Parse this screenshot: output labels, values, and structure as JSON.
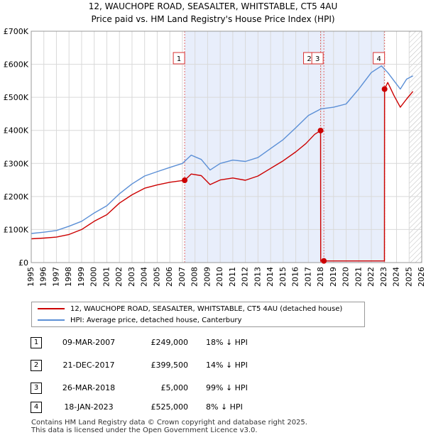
{
  "title_line1": "12, WAUCHOPE ROAD, SEASALTER, WHITSTABLE, CT5 4AU",
  "title_line2": "Price paid vs. HM Land Registry's House Price Index (HPI)",
  "colors": {
    "red": "#cc0000",
    "blue": "#5b8fd6",
    "shade": "#e8eefb",
    "grid": "#d9d9d9",
    "hatch": "#bbbbbb"
  },
  "chart_data": {
    "type": "line",
    "xlim": [
      1995,
      2026
    ],
    "ylim": [
      0,
      700000
    ],
    "yticks": [
      0,
      100000,
      200000,
      300000,
      400000,
      500000,
      600000,
      700000
    ],
    "ytick_labels": [
      "£0",
      "£100K",
      "£200K",
      "£300K",
      "£400K",
      "£500K",
      "£600K",
      "£700K"
    ],
    "xticks": [
      1995,
      1996,
      1997,
      1998,
      1999,
      2000,
      2001,
      2002,
      2003,
      2004,
      2005,
      2006,
      2007,
      2008,
      2009,
      2010,
      2011,
      2012,
      2013,
      2014,
      2015,
      2016,
      2017,
      2018,
      2019,
      2020,
      2021,
      2022,
      2023,
      2024,
      2025,
      2026
    ],
    "shaded_range": [
      2007.18,
      2023.05
    ],
    "hatched_from": 2025.0,
    "series": [
      {
        "name": "12, WAUCHOPE ROAD, SEASALTER, WHITSTABLE, CT5 4AU (detached house)",
        "color": "#cc0000",
        "x": [
          1995.0,
          1996.0,
          1997.0,
          1998.0,
          1999.0,
          2000.0,
          2001.0,
          2002.0,
          2003.0,
          2004.0,
          2005.0,
          2006.0,
          2007.18,
          2007.7,
          2008.5,
          2009.2,
          2010.0,
          2011.0,
          2012.0,
          2013.0,
          2014.0,
          2015.0,
          2016.0,
          2016.8,
          2017.5,
          2017.97,
          2017.98,
          2018.23,
          2018.3,
          2019.0,
          2020.0,
          2021.0,
          2022.0,
          2023.04,
          2023.05,
          2023.3,
          2023.8,
          2024.3,
          2024.8,
          2025.3
        ],
        "y": [
          72000,
          74000,
          77000,
          85000,
          100000,
          125000,
          145000,
          180000,
          205000,
          225000,
          235000,
          243000,
          249000,
          268000,
          263000,
          236000,
          250000,
          256000,
          249000,
          262000,
          285000,
          308000,
          335000,
          360000,
          388000,
          399500,
          5000,
          5000,
          5000,
          5000,
          5000,
          5000,
          5000,
          5000,
          525000,
          545000,
          505000,
          470000,
          495000,
          518000
        ]
      },
      {
        "name": "HPI: Average price, detached house, Canterbury",
        "color": "#5b8fd6",
        "x": [
          1995.0,
          1996.0,
          1997.0,
          1998.0,
          1999.0,
          2000.0,
          2001.0,
          2002.0,
          2003.0,
          2004.0,
          2005.0,
          2006.0,
          2007.0,
          2007.7,
          2008.5,
          2009.2,
          2010.0,
          2011.0,
          2012.0,
          2013.0,
          2014.0,
          2015.0,
          2016.0,
          2017.0,
          2018.0,
          2019.0,
          2020.0,
          2021.0,
          2022.0,
          2022.8,
          2023.3,
          2023.8,
          2024.3,
          2024.8,
          2025.3
        ],
        "y": [
          88000,
          92000,
          97000,
          110000,
          125000,
          150000,
          172000,
          208000,
          238000,
          262000,
          275000,
          288000,
          300000,
          325000,
          312000,
          280000,
          300000,
          310000,
          306000,
          318000,
          345000,
          372000,
          408000,
          445000,
          465000,
          470000,
          480000,
          525000,
          575000,
          595000,
          575000,
          550000,
          525000,
          555000,
          565000
        ]
      }
    ],
    "transactions": [
      {
        "id": "1",
        "x": 2007.18,
        "y": 249000
      },
      {
        "id": "2",
        "x": 2017.97,
        "y": 399500
      },
      {
        "id": "3",
        "x": 2018.23,
        "y": 5000
      },
      {
        "id": "4",
        "x": 2023.05,
        "y": 525000
      }
    ]
  },
  "legend": {
    "property": "12, WAUCHOPE ROAD, SEASALTER, WHITSTABLE, CT5 4AU (detached house)",
    "hpi": "HPI: Average price, detached house, Canterbury"
  },
  "table": [
    {
      "num": "1",
      "date": "09-MAR-2007",
      "price": "£249,000",
      "hpi": "18% ↓ HPI"
    },
    {
      "num": "2",
      "date": "21-DEC-2017",
      "price": "£399,500",
      "hpi": "14% ↓ HPI"
    },
    {
      "num": "3",
      "date": "26-MAR-2018",
      "price": "£5,000",
      "hpi": "99% ↓ HPI"
    },
    {
      "num": "4",
      "date": "18-JAN-2023",
      "price": "£525,000",
      "hpi": "8% ↓ HPI"
    }
  ],
  "footer_line1": "Contains HM Land Registry data © Crown copyright and database right 2025.",
  "footer_line2": "This data is licensed under the Open Government Licence v3.0."
}
